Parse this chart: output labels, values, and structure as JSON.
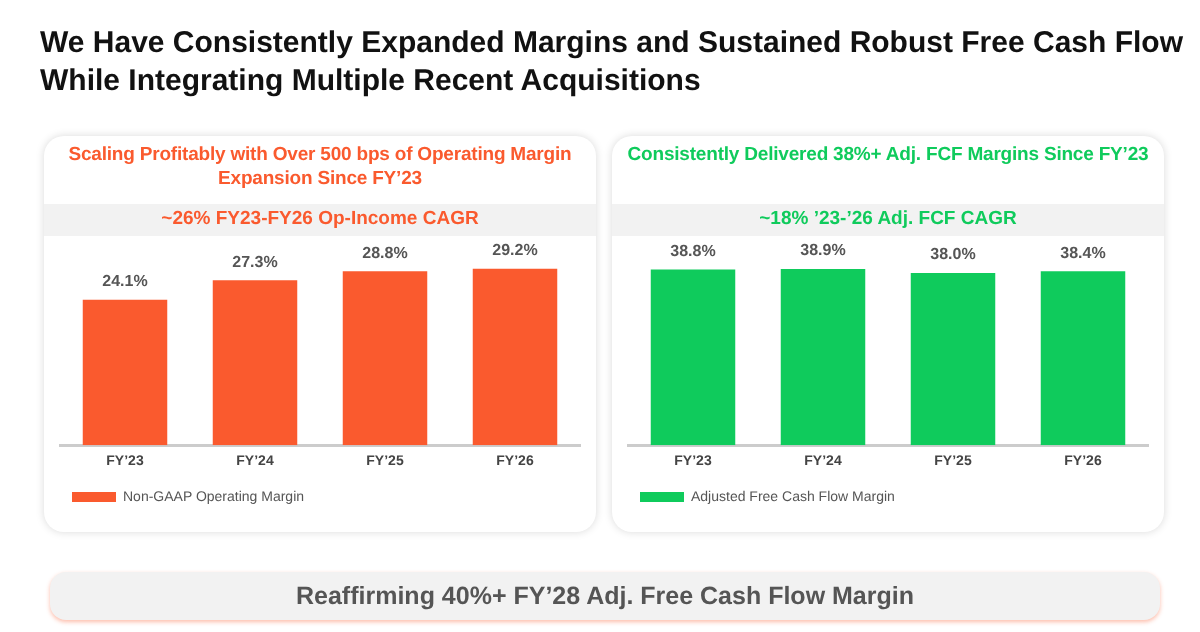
{
  "chart_data": [
    {
      "type": "bar",
      "title": "Scaling Profitably with Over 500 bps of Operating Margin Expansion Since FY’23",
      "subtitle": "~26% FY23-FY26 Op-Income CAGR",
      "categories": [
        "FY’23",
        "FY’24",
        "FY’25",
        "FY’26"
      ],
      "series": [
        {
          "name": "Non-GAAP Operating Margin",
          "color": "#fa5a2e",
          "values": [
            24.1,
            27.3,
            28.8,
            29.2
          ],
          "value_labels": [
            "24.1%",
            "27.3%",
            "28.8%",
            "29.2%"
          ]
        }
      ],
      "legend": "bottom left",
      "grid": false,
      "annotations": [
        "We Have Consistently Expanded Margins and Sustained Robust Free Cash Flow While Integrating Multiple Recent Acquisitions",
        "Reaffirming 40%+ FY’28 Adj. Free Cash Flow Margin"
      ]
    },
    {
      "type": "bar",
      "title": "Consistently Delivered 38%+ Adj. FCF Margins Since FY’23",
      "subtitle": "~18% ’23-’26 Adj. FCF CAGR",
      "categories": [
        "FY’23",
        "FY’24",
        "FY’25",
        "FY’26"
      ],
      "series": [
        {
          "name": "Adjusted Free Cash Flow Margin",
          "color": "#0fcb5c",
          "values": [
            38.8,
            38.9,
            38.0,
            38.4
          ],
          "value_labels": [
            "38.8%",
            "38.9%",
            "38.0%",
            "38.4%"
          ]
        }
      ],
      "legend": "bottom left",
      "grid": false
    }
  ]
}
